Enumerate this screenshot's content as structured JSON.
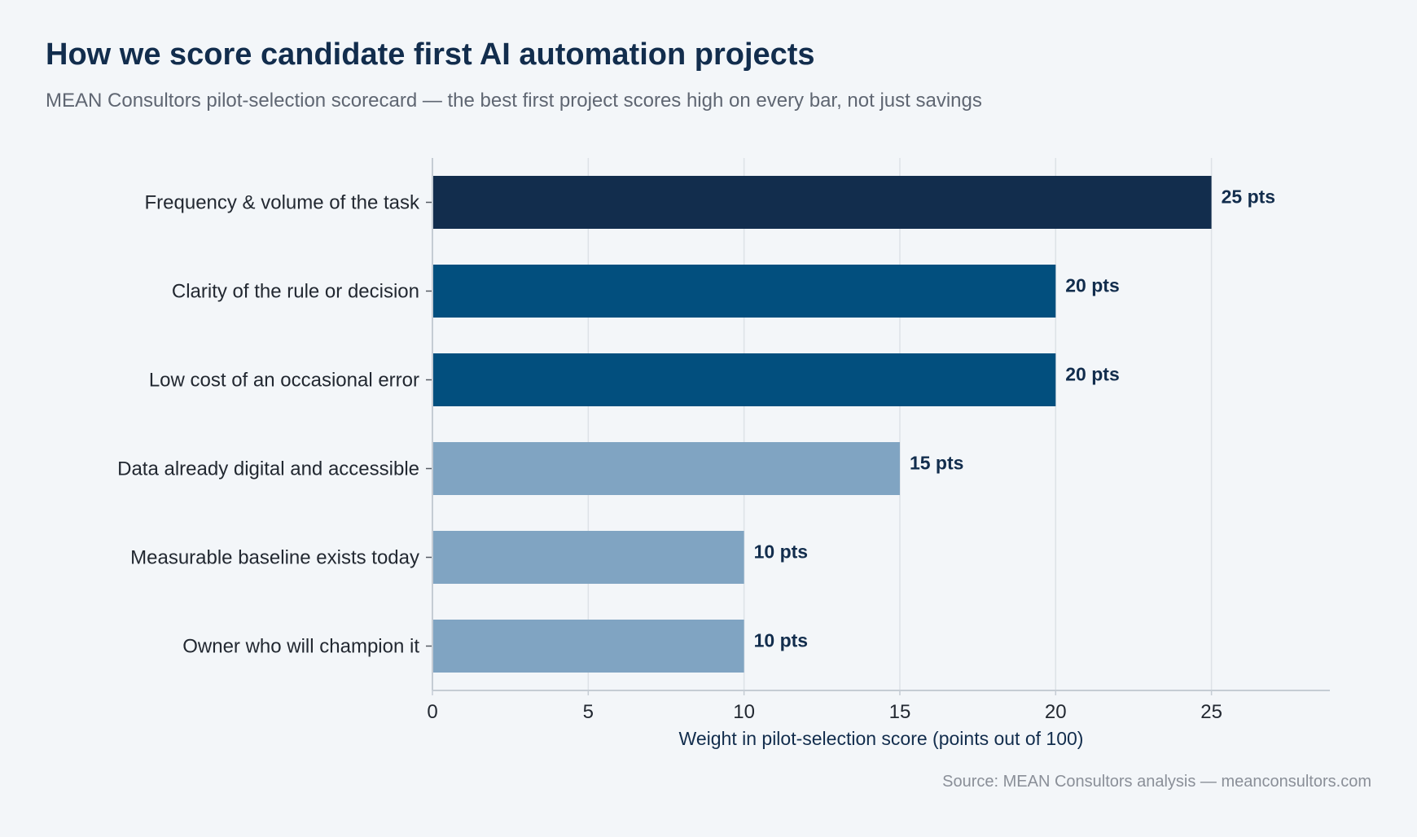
{
  "title": "How we score candidate first AI automation projects",
  "subtitle": "MEAN Consultors pilot-selection scorecard — the best first project scores high on every bar, not just savings",
  "source": "Source: MEAN Consultors analysis — meanconsultors.com",
  "chart_data": {
    "type": "bar",
    "orientation": "horizontal",
    "title": "How we score candidate first AI automation projects",
    "subtitle": "MEAN Consultors pilot-selection scorecard — the best first project scores high on every bar, not just savings",
    "xlabel": "Weight in pilot-selection score (points out of 100)",
    "ylabel": "",
    "xlim": [
      0,
      28.8
    ],
    "x_ticks": [
      0,
      5,
      10,
      15,
      20,
      25
    ],
    "grid": true,
    "legend": "none",
    "categories": [
      "Frequency & volume of the task",
      "Clarity of the rule or decision",
      "Low cost of an occasional error",
      "Data already digital and accessible",
      "Measurable baseline exists today",
      "Owner who will champion it"
    ],
    "values": [
      25,
      20,
      20,
      15,
      10,
      10
    ],
    "value_labels": [
      "25 pts",
      "20 pts",
      "20 pts",
      "15 pts",
      "10 pts",
      "10 pts"
    ],
    "bar_colors": [
      "#122d4d",
      "#024f7e",
      "#024f7e",
      "#80a4c2",
      "#80a4c2",
      "#80a4c2"
    ]
  },
  "colors": {
    "background": "#f3f6f9",
    "title": "#122d4d",
    "subtitle": "#5f6672",
    "axis_text": "#222831",
    "value_label": "#122d4d",
    "grid": "#dde2e7",
    "axis_line": "#c5ccd4",
    "source": "#8a8f98"
  }
}
